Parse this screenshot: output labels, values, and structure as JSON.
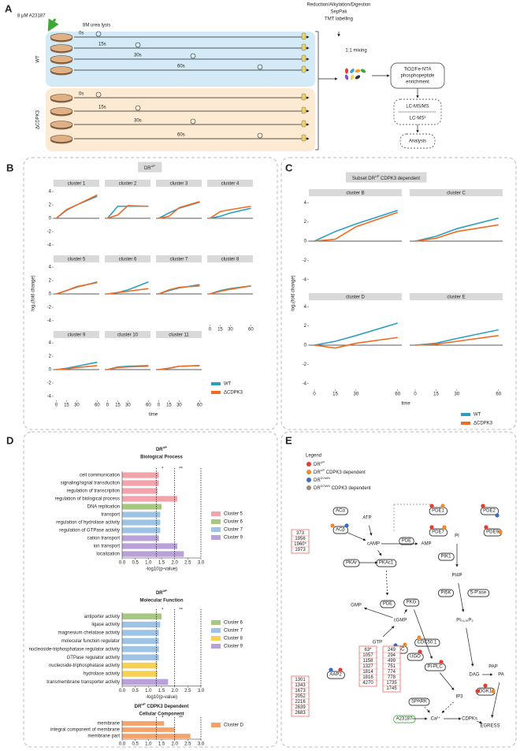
{
  "panel_labels": [
    "A",
    "B",
    "C",
    "D",
    "E"
  ],
  "workflow": {
    "treatment": "8 µM A23187",
    "lysis": "8M urea lysis",
    "processing": [
      "Reduction/Alkylation/Digestion",
      "SepPak",
      "TMT labelling"
    ],
    "groups": [
      "WT",
      "ΔCDPK3"
    ],
    "group_colors": [
      "#3aa0d8",
      "#f0a030"
    ],
    "timepoints": [
      "0s",
      "15s",
      "30s",
      "60s"
    ],
    "mixing": "1:1 mixing",
    "steps": [
      [
        "TiO2/Fe-NTA",
        "phosphopeptide",
        "enrichment"
      ],
      [
        "LC-MS/MS"
      ],
      [
        "LC-MS³"
      ],
      [
        "Analysis"
      ]
    ]
  },
  "chart_data": [
    {
      "type": "line",
      "title": "DR",
      "title_sup": "UP",
      "x": [
        0,
        15,
        30,
        60
      ],
      "xlim": [
        -4,
        63
      ],
      "xticks": [
        0,
        15,
        30,
        60
      ],
      "xlabel": "time",
      "ylim": [
        -4.6,
        4.6
      ],
      "yticks": [
        -4,
        -2,
        0,
        2,
        4
      ],
      "ylabel": "log₂(fold change)",
      "legend": [
        {
          "name": "WT",
          "color": "#2b9fc0"
        },
        {
          "name": "ΔCDPK3",
          "color": "#f26b21"
        }
      ],
      "facets": [
        {
          "name": "cluster 1",
          "values": [
            [
              0,
              1.2,
              2,
              3.3
            ],
            [
              0,
              1.3,
              2,
              3.5
            ]
          ]
        },
        {
          "name": "cluster 2",
          "values": [
            [
              0,
              1.8,
              1.8,
              1.8
            ],
            [
              0,
              0.5,
              1.9,
              1.8
            ]
          ]
        },
        {
          "name": "cluster 3",
          "values": [
            [
              0,
              0.8,
              1.5,
              2.4
            ],
            [
              0,
              0.3,
              1.6,
              2.5
            ]
          ]
        },
        {
          "name": "cluster 4",
          "values": [
            [
              0,
              0.3,
              0.8,
              1.5
            ],
            [
              0,
              1,
              1.3,
              1.8
            ]
          ]
        },
        {
          "name": "cluster 5",
          "values": [
            [
              0,
              0.5,
              1,
              1.8
            ],
            [
              0,
              0.5,
              1.1,
              1.7
            ]
          ]
        },
        {
          "name": "cluster 6",
          "values": [
            [
              0,
              0.2,
              0.6,
              1.8
            ],
            [
              0,
              0.2,
              0.4,
              0.8
            ]
          ]
        },
        {
          "name": "cluster 7",
          "values": [
            [
              0,
              0.5,
              0.9,
              1.4
            ],
            [
              0,
              0.6,
              1,
              1.2
            ]
          ]
        },
        {
          "name": "cluster 8",
          "values": [
            [
              0,
              0.5,
              0.8,
              1.2
            ],
            [
              0,
              0.4,
              0.7,
              1.2
            ]
          ]
        },
        {
          "name": "cluster 9",
          "values": [
            [
              0,
              0.2,
              0.5,
              1.1
            ],
            [
              0,
              0.1,
              0.3,
              0.6
            ]
          ]
        },
        {
          "name": "cluster 10",
          "values": [
            [
              0,
              0.4,
              0.5,
              0.6
            ],
            [
              0,
              0.3,
              0.4,
              0.5
            ]
          ]
        },
        {
          "name": "cluster 11",
          "values": [
            [
              0,
              0.2,
              0.5,
              0.6
            ],
            [
              0,
              0.2,
              0.5,
              0.6
            ]
          ]
        }
      ]
    },
    {
      "type": "line",
      "title": "Subset DR",
      "title_sup": "UP",
      "title_rest": " CDPK3 dependent",
      "x": [
        0,
        15,
        30,
        60
      ],
      "xlim": [
        -4,
        63
      ],
      "xticks": [
        0,
        15,
        30,
        60
      ],
      "xlabel": "time",
      "ylim": [
        -4.6,
        4.6
      ],
      "yticks": [
        -4,
        -2,
        0,
        2,
        4
      ],
      "ylabel": "log₂(fold change)",
      "legend": [
        {
          "name": "WT",
          "color": "#2b9fc0"
        },
        {
          "name": "ΔCDPK3",
          "color": "#f26b21"
        }
      ],
      "facets": [
        {
          "name": "cluster B",
          "values": [
            [
              0,
              1,
              1.8,
              3.2
            ],
            [
              0,
              0.2,
              1.5,
              3
            ]
          ]
        },
        {
          "name": "cluster C",
          "values": [
            [
              0,
              0.5,
              1.3,
              2.4
            ],
            [
              0,
              0.3,
              1,
              1.7
            ]
          ]
        },
        {
          "name": "cluster D",
          "values": [
            [
              0,
              0.4,
              1,
              2.3
            ],
            [
              0,
              -0.3,
              0.2,
              0.8
            ]
          ]
        },
        {
          "name": "cluster E",
          "values": [
            [
              0,
              0.2,
              0.7,
              1.6
            ],
            [
              0,
              0.1,
              0.4,
              1
            ]
          ]
        }
      ]
    },
    {
      "type": "hbar",
      "title": "DR",
      "title_sup": "UP",
      "subtitle": "Biological Process",
      "categories": [
        "cell communication",
        "signaling/signal transduction",
        "regulation of transcription",
        "regulation of biological process",
        "DNA replication",
        "transport",
        "regulation of hydrolase activity",
        "regulation of GTPase activity",
        "cation transport",
        "ion transport",
        "localization"
      ],
      "values": [
        1.4,
        1.4,
        1.35,
        2.1,
        1.5,
        1.45,
        1.45,
        1.45,
        1.4,
        2.1,
        2.35
      ],
      "colors": [
        "#f4a3ab",
        "#f4a3ab",
        "#f4a3ab",
        "#f4a3ab",
        "#a6c97f",
        "#9dc4e4",
        "#9dc4e4",
        "#9dc4e4",
        "#b9a1d9",
        "#b9a1d9",
        "#b9a1d9"
      ],
      "xlim": [
        0,
        3
      ],
      "xticks": [
        {
          "value": 0,
          "label": "0.0"
        },
        0.5,
        {
          "value": 1,
          "label": "1.0"
        },
        1.5,
        {
          "value": 2,
          "label": "2.0"
        },
        2.5,
        {
          "value": 3,
          "label": "3.0"
        }
      ],
      "xlabel": "-log10(p-value)",
      "thresholds": [
        {
          "value": 1.3,
          "label": "*"
        },
        {
          "value": 2,
          "label": "**"
        }
      ],
      "legend": [
        {
          "name": "Cluster 5",
          "color": "#f4a3ab"
        },
        {
          "name": "Cluster 6",
          "color": "#a6c97f"
        },
        {
          "name": "Cluster 7",
          "color": "#9dc4e4"
        },
        {
          "name": "Cluster 9",
          "color": "#b9a1d9"
        }
      ]
    },
    {
      "type": "hbar",
      "title": "DR",
      "title_sup": "UP",
      "subtitle": "Molecular Function",
      "categories": [
        "antiporter activity",
        "ligase activity",
        "magnesium chelatase activity",
        "molecular function regulator",
        "nucleoside-triphosphatase regulator activity",
        "GTPase regulator activity",
        "nucleoside-triphosphatase activity",
        "hydrolase activity",
        "transmembrane transporter activity"
      ],
      "values": [
        1.5,
        1.45,
        1.4,
        1.4,
        1.4,
        1.4,
        1.35,
        1.35,
        1.75
      ],
      "colors": [
        "#a6c97f",
        "#9dc4e4",
        "#9dc4e4",
        "#9dc4e4",
        "#9dc4e4",
        "#9dc4e4",
        "#f6d154",
        "#f6d154",
        "#b9a1d9"
      ],
      "xlim": [
        0,
        3
      ],
      "xticks": [
        {
          "value": 0,
          "label": "0.0"
        },
        0.5,
        {
          "value": 1,
          "label": "1.0"
        },
        1.5,
        {
          "value": 2,
          "label": "2.0"
        },
        2.5,
        {
          "value": 3,
          "label": "3.0"
        }
      ],
      "xlabel": "-log10(p-value)",
      "thresholds": [
        {
          "value": 1.3,
          "label": "*"
        },
        {
          "value": 2,
          "label": "**"
        }
      ],
      "legend": [
        {
          "name": "Cluster 6",
          "color": "#a6c97f"
        },
        {
          "name": "Cluster 7",
          "color": "#9dc4e4"
        },
        {
          "name": "Cluster 8",
          "color": "#f6d154"
        },
        {
          "name": "Cluster 9",
          "color": "#b9a1d9"
        }
      ]
    },
    {
      "type": "hbar",
      "title": "DR",
      "title_sup": "UP",
      "title_rest": " CDPK3 Dependent",
      "subtitle": "Cellular Component",
      "categories": [
        "membrane",
        "integral component of membrane",
        "membrane part"
      ],
      "values": [
        1.6,
        2.0,
        2.6
      ],
      "colors": [
        "#f5a36a",
        "#f5a36a",
        "#f5a36a"
      ],
      "xlim": [
        0,
        3
      ],
      "xticks": [
        {
          "value": 0,
          "label": "0.0"
        },
        0.5,
        {
          "value": 1,
          "label": "1.0"
        },
        1.5,
        {
          "value": 2,
          "label": "2.0"
        },
        2.5,
        {
          "value": 3,
          "label": "3.0"
        }
      ],
      "thresholds": [
        {
          "value": 1.3,
          "label": "*"
        },
        {
          "value": 2,
          "label": "**"
        }
      ],
      "legend": [
        {
          "name": "Cluster D",
          "color": "#f5a36a"
        }
      ]
    }
  ],
  "pathway": {
    "legend_title": "Legend",
    "legend": [
      {
        "text": "DR",
        "sup": "UP",
        "color": "#e63b2e"
      },
      {
        "text": "DR",
        "sup": "UP",
        "rest": " CDPK3 dependent",
        "color": "#f08a24"
      },
      {
        "text": "DR",
        "sup": "DOWN",
        "color": "#3a6cc4"
      },
      {
        "text": "DR",
        "sup": "DOWN",
        "rest": " CDPK3 dependent",
        "color": "#9c8a7a"
      }
    ],
    "nodes": [
      {
        "label": "ACα",
        "boxed": true
      },
      {
        "label": "ACβ",
        "boxed": true
      },
      {
        "label": "ATP"
      },
      {
        "label": "cAMP"
      },
      {
        "label": "PDE",
        "boxed": true
      },
      {
        "label": "AMP"
      },
      {
        "label": "PKAr",
        "boxed": true
      },
      {
        "label": "PKAc1",
        "boxed": true
      },
      {
        "label": "GMP"
      },
      {
        "label": "PDE",
        "boxed": true
      },
      {
        "label": "cGMP"
      },
      {
        "label": "PKG",
        "boxed": true
      },
      {
        "label": "GTP"
      },
      {
        "label": "GC",
        "boxed": true
      },
      {
        "label": "CDC50.1",
        "boxed": true
      },
      {
        "label": "UGO",
        "boxed": true
      },
      {
        "label": "PI-PLC",
        "boxed": true
      },
      {
        "label": "AAP2",
        "boxed": true
      },
      {
        "label": "SPARK",
        "boxed": true
      },
      {
        "label": "A23187",
        "boxed": true,
        "color": "#3aa935"
      },
      {
        "label": "Ca²⁺"
      },
      {
        "label": "CDPKs"
      },
      {
        "label": "IP3"
      },
      {
        "label": "DAG"
      },
      {
        "label": "PAP"
      },
      {
        "label": "PA"
      },
      {
        "label": "DGK1",
        "boxed": true
      },
      {
        "label": "EGRESS",
        "color": "#e63b2e"
      },
      {
        "label": "PI"
      },
      {
        "label": "PIK1",
        "boxed": true
      },
      {
        "label": "PI4P"
      },
      {
        "label": "PI5K",
        "boxed": true
      },
      {
        "label": "5-P'ase",
        "boxed": true
      },
      {
        "label": "PI₍₄,₅₎P₂"
      },
      {
        "label": "PDE1",
        "boxed": true
      },
      {
        "label": "PDE2",
        "boxed": true
      },
      {
        "label": "PDE7",
        "boxed": true
      },
      {
        "label": "PDE9",
        "boxed": true
      }
    ],
    "site_boxes": [
      [
        "373",
        "1956",
        "1960*",
        "1973"
      ],
      [
        "1301",
        "1343",
        "1673",
        "2052",
        "2216",
        "2639",
        "2683"
      ],
      [
        "63*",
        "1057",
        "1158",
        "1327",
        "1814",
        "1816",
        "4270"
      ],
      [
        "249",
        "294",
        "499",
        "751",
        "774",
        "778",
        "1735",
        "1745"
      ]
    ]
  }
}
